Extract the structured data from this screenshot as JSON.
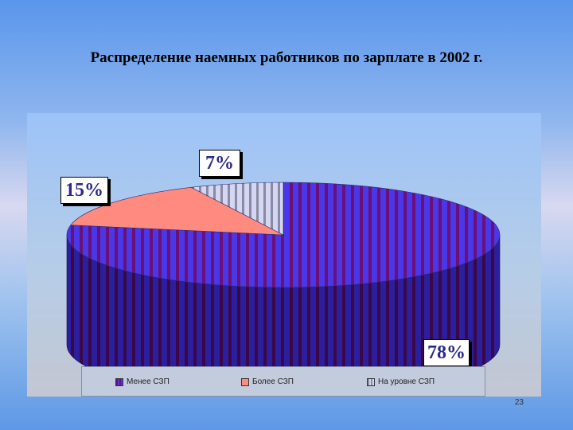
{
  "slide": {
    "title": "Распределение наемных работников по зарплате в 2002 г.",
    "page_number": "23"
  },
  "chart_data": {
    "type": "pie",
    "title": "Распределение наемных работников по зарплате в 2002 г.",
    "categories": [
      "Менее СЗП",
      "Более СЗП",
      "На уровне СЗП"
    ],
    "values": [
      78,
      15,
      7
    ],
    "data_labels": [
      "78%",
      "15%",
      "7%"
    ],
    "unit": "%",
    "three_d": true,
    "legend_position": "bottom",
    "colors": [
      "#4a38e8",
      "#ff8a80",
      "#cfd2f2"
    ],
    "stripe_colors": [
      "#6a1078",
      "#ff8a80",
      "#8a8aa0"
    ]
  }
}
